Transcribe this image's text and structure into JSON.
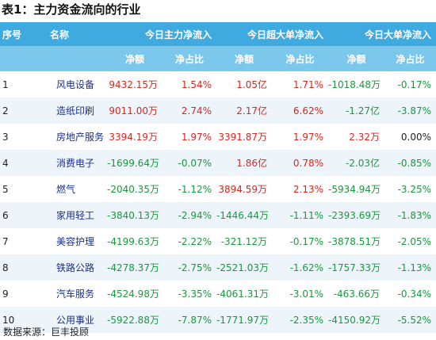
{
  "title": "表1：主力资金流向的行业",
  "header": {
    "rank": "序号",
    "name": "名称",
    "groups": [
      "今日主力净流入",
      "今日超大单净流入",
      "今日大单净流入"
    ],
    "sub": [
      "净额",
      "净占比",
      "净额",
      "净占比",
      "净额",
      "净占比"
    ]
  },
  "rows": [
    {
      "rank": "1",
      "name": "风电设备",
      "c1": "9432.15万",
      "c2": "1.54%",
      "c3": "1.05亿",
      "c4": "1.71%",
      "c5": "-1018.48万",
      "c6": "-0.17%"
    },
    {
      "rank": "2",
      "name": "造纸印刷",
      "c1": "9011.00万",
      "c2": "2.74%",
      "c3": "2.17亿",
      "c4": "6.62%",
      "c5": "-1.27亿",
      "c6": "-3.87%"
    },
    {
      "rank": "3",
      "name": "房地产服务",
      "c1": "3394.19万",
      "c2": "1.97%",
      "c3": "3391.87万",
      "c4": "1.97%",
      "c5": "2.32万",
      "c6": "0.00%"
    },
    {
      "rank": "4",
      "name": "消费电子",
      "c1": "-1699.64万",
      "c2": "-0.07%",
      "c3": "1.86亿",
      "c4": "0.78%",
      "c5": "-2.03亿",
      "c6": "-0.85%"
    },
    {
      "rank": "5",
      "name": "燃气",
      "c1": "-2040.35万",
      "c2": "-1.12%",
      "c3": "3894.59万",
      "c4": "2.13%",
      "c5": "-5934.94万",
      "c6": "-3.25%"
    },
    {
      "rank": "6",
      "name": "家用轻工",
      "c1": "-3840.13万",
      "c2": "-2.94%",
      "c3": "-1446.44万",
      "c4": "-1.11%",
      "c5": "-2393.69万",
      "c6": "-1.83%"
    },
    {
      "rank": "7",
      "name": "美容护理",
      "c1": "-4199.63万",
      "c2": "-2.22%",
      "c3": "-321.12万",
      "c4": "-0.17%",
      "c5": "-3878.51万",
      "c6": "-2.05%"
    },
    {
      "rank": "8",
      "name": "铁路公路",
      "c1": "-4278.37万",
      "c2": "-2.75%",
      "c3": "-2521.03万",
      "c4": "-1.62%",
      "c5": "-1757.33万",
      "c6": "-1.13%"
    },
    {
      "rank": "9",
      "name": "汽车服务",
      "c1": "-4524.98万",
      "c2": "-3.35%",
      "c3": "-4061.31万",
      "c4": "-3.01%",
      "c5": "-463.66万",
      "c6": "-0.34%"
    },
    {
      "rank": "10",
      "name": "公用事业",
      "c1": "-5922.88万",
      "c2": "-7.87%",
      "c3": "-1771.97万",
      "c4": "-2.35%",
      "c5": "-4150.92万",
      "c6": "-5.52%"
    }
  ],
  "footer": "数据来源：巨丰投顾",
  "colors": {
    "positive": "#e2231a",
    "negative": "#189a3c",
    "neutral": "#222222",
    "name": "#1a2f8f",
    "header": "#3eaae0",
    "subheader": "#7cc8ec"
  }
}
